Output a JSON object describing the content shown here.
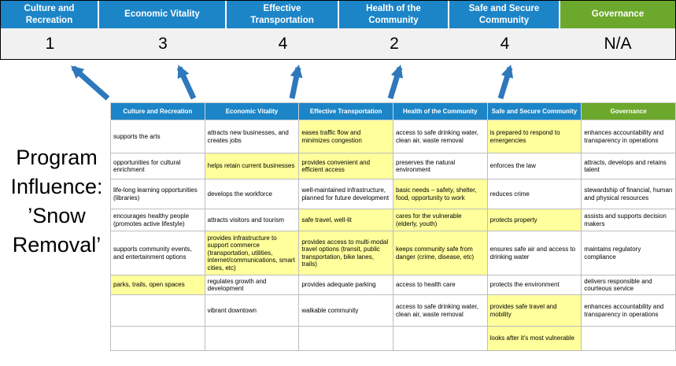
{
  "title": {
    "lines": [
      "Program",
      "Influence:",
      "’Snow",
      "Removal’"
    ]
  },
  "colors": {
    "header_blue": "#1c85c7",
    "header_green": "#6ca82c",
    "highlight_yellow": "#ffff9c",
    "arrow_blue": "#2e78bb",
    "score_bg": "#f1f1f1"
  },
  "summary": {
    "columns": [
      {
        "label": "Culture and Recreation",
        "score": "1",
        "color": "blue"
      },
      {
        "label": "Economic Vitality",
        "score": "3",
        "color": "blue"
      },
      {
        "label": "Effective Transportation",
        "score": "4",
        "color": "blue"
      },
      {
        "label": "Health of the Community",
        "score": "2",
        "color": "blue"
      },
      {
        "label": "Safe and Secure Community",
        "score": "4",
        "color": "blue"
      },
      {
        "label": "Governance",
        "score": "N/A",
        "color": "green"
      }
    ]
  },
  "table": {
    "headers": [
      {
        "label": "Culture and Recreation",
        "color": "blue"
      },
      {
        "label": "Economic Vitality",
        "color": "blue"
      },
      {
        "label": "Effective Transportation",
        "color": "blue"
      },
      {
        "label": "Health of the Community",
        "color": "blue"
      },
      {
        "label": "Safe and Secure Community",
        "color": "blue"
      },
      {
        "label": "Governance",
        "color": "green"
      }
    ],
    "rows": [
      [
        {
          "text": "supports the arts",
          "hl": false
        },
        {
          "text": "attracts new businesses, and creates jobs",
          "hl": false
        },
        {
          "text": "eases traffic flow and minimizes congestion",
          "hl": true
        },
        {
          "text": "access to safe drinking water, clean air, waste removal",
          "hl": false
        },
        {
          "text": "is prepared to respond to emergencies",
          "hl": true
        },
        {
          "text": "enhances accountability and transparency in operations",
          "hl": false
        }
      ],
      [
        {
          "text": "opportunities for cultural enrichment",
          "hl": false
        },
        {
          "text": "helps retain current businesses",
          "hl": true
        },
        {
          "text": "provides convenient and efficient access",
          "hl": true
        },
        {
          "text": "preserves the natural environment",
          "hl": false
        },
        {
          "text": "enforces the law",
          "hl": false
        },
        {
          "text": "attracts, develops and retains talent",
          "hl": false
        }
      ],
      [
        {
          "text": "life-long learning opportunities (libraries)",
          "hl": false
        },
        {
          "text": "develops the workforce",
          "hl": false
        },
        {
          "text": "well-maintained infrastructure, planned for future development",
          "hl": false
        },
        {
          "text": "basic needs – safety, shelter, food, opportunity to work",
          "hl": true
        },
        {
          "text": "reduces crime",
          "hl": false
        },
        {
          "text": "stewardship of financial, human and physical resources",
          "hl": false
        }
      ],
      [
        {
          "text": "encourages healthy people (promotes active lifestyle)",
          "hl": false
        },
        {
          "text": "attracts visitors and tourism",
          "hl": false
        },
        {
          "text": "safe travel, well-lit",
          "hl": true
        },
        {
          "text": "cares for the vulnerable (elderly, youth)",
          "hl": true
        },
        {
          "text": "protects property",
          "hl": true
        },
        {
          "text": "assists and supports decision makers",
          "hl": false
        }
      ],
      [
        {
          "text": "supports community events, and entertainment options",
          "hl": false
        },
        {
          "text": "provides infrastructure to support commerce (transportation, utilities, internet/communications, smart cities, etc)",
          "hl": true
        },
        {
          "text": "provides access to multi-modal travel options (transit, public transportation, bike lanes, trails)",
          "hl": true
        },
        {
          "text": "keeps community safe from danger (crime, disease, etc)",
          "hl": true
        },
        {
          "text": "ensures safe air and access to drinking water",
          "hl": false
        },
        {
          "text": "maintains regulatory compliance",
          "hl": false
        }
      ],
      [
        {
          "text": "parks, trails, open spaces",
          "hl": true
        },
        {
          "text": "regulates growth and development",
          "hl": false
        },
        {
          "text": "provides adequate parking",
          "hl": false
        },
        {
          "text": "access to health care",
          "hl": false
        },
        {
          "text": "protects the environment",
          "hl": false
        },
        {
          "text": "delivers responsible and courteous service",
          "hl": false
        }
      ],
      [
        {
          "text": "",
          "hl": false
        },
        {
          "text": "vibrant downtown",
          "hl": false
        },
        {
          "text": "walkable community",
          "hl": false
        },
        {
          "text": "access to safe drinking water, clean air, waste removal",
          "hl": false
        },
        {
          "text": "provides safe travel and mobility",
          "hl": true
        },
        {
          "text": "enhances accountability and transparency in operations",
          "hl": false
        }
      ],
      [
        {
          "text": "",
          "hl": false
        },
        {
          "text": "",
          "hl": false
        },
        {
          "text": "",
          "hl": false
        },
        {
          "text": "",
          "hl": false
        },
        {
          "text": "looks after it's most vulnerable",
          "hl": true
        },
        {
          "text": "",
          "hl": false
        }
      ]
    ]
  }
}
